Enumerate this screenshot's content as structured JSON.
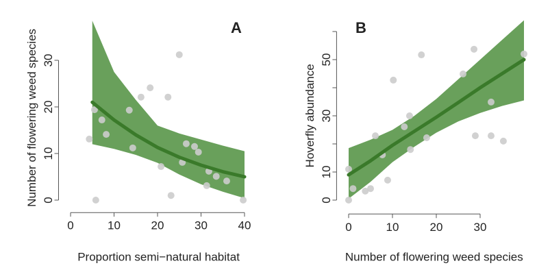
{
  "chart_data": [
    {
      "type": "scatter-fit",
      "label": "A",
      "xlabel": "Proportion semi−natural habitat",
      "ylabel": "Number of flowering weed species",
      "xlim": [
        -1.5,
        42
      ],
      "ylim": [
        -1.5,
        38
      ],
      "xticks": [
        0,
        10,
        20,
        30,
        40
      ],
      "yticks": [
        0,
        10,
        20,
        30
      ],
      "point_color": "#cccccc",
      "band_color": "#4f8f3e",
      "line_color": "#3a7a2a",
      "points": {
        "x": [
          4.3,
          5.8,
          5.5,
          7.2,
          8.2,
          13.5,
          14.3,
          16.2,
          18.3,
          20.8,
          22.4,
          23.1,
          25,
          25.7,
          26.6,
          28.5,
          29.4,
          31.3,
          31.8,
          33.5,
          35.9,
          39.7
        ],
        "y": [
          13.1,
          0,
          19.4,
          17.2,
          14.1,
          19.3,
          11.2,
          22.1,
          24.1,
          7.2,
          22.1,
          1,
          31.2,
          8.1,
          12.1,
          11.5,
          10.3,
          3.1,
          6.2,
          5.1,
          4.1,
          0
        ]
      },
      "fit": {
        "x": [
          5,
          10,
          15,
          20,
          25,
          30,
          35,
          40
        ],
        "y": [
          21,
          17.2,
          14,
          11.3,
          9.2,
          7.5,
          6.1,
          5
        ],
        "lower": [
          12,
          11,
          9.7,
          8,
          5.5,
          3.4,
          1.8,
          0.4
        ],
        "upper": [
          38.5,
          27.5,
          21.5,
          16,
          14.3,
          13,
          11.7,
          10.5
        ]
      }
    },
    {
      "type": "scatter-fit",
      "label": "B",
      "xlabel": "Number of flowering weed species",
      "ylabel": "Hoverfly abundance",
      "xlim": [
        -1.5,
        40.5
      ],
      "ylim": [
        -3,
        65
      ],
      "xticks": [
        0,
        10,
        20,
        30
      ],
      "yticks": [
        0,
        10,
        30,
        50
      ],
      "yminorticks": [
        20,
        40,
        60
      ],
      "point_color": "#cccccc",
      "band_color": "#4f8f3e",
      "line_color": "#3a7a2a",
      "points": {
        "x": [
          0,
          0,
          1,
          3.8,
          5,
          6.1,
          7.7,
          8.9,
          10.2,
          12.7,
          13.9,
          14.1,
          16.6,
          17.8,
          26.1,
          28.6,
          28.9,
          32.5,
          32.5,
          35.3,
          40
        ],
        "y": [
          11,
          0,
          4.1,
          3.2,
          4.1,
          22.9,
          16.1,
          7.1,
          42.7,
          26.1,
          30,
          18,
          51.7,
          22.2,
          44.9,
          53.7,
          22.9,
          34.9,
          22.9,
          21,
          52
        ]
      },
      "fit": {
        "x": [
          0,
          5,
          10,
          15,
          20,
          25,
          30,
          35,
          40
        ],
        "y": [
          9,
          14,
          19.5,
          24.5,
          29.5,
          34.7,
          40,
          45,
          50
        ],
        "lower": [
          0.5,
          6.5,
          13.5,
          19,
          24,
          28,
          31,
          33.5,
          35.5
        ],
        "upper": [
          18.5,
          21.5,
          25,
          30,
          36,
          43,
          50,
          57,
          64
        ]
      }
    }
  ]
}
